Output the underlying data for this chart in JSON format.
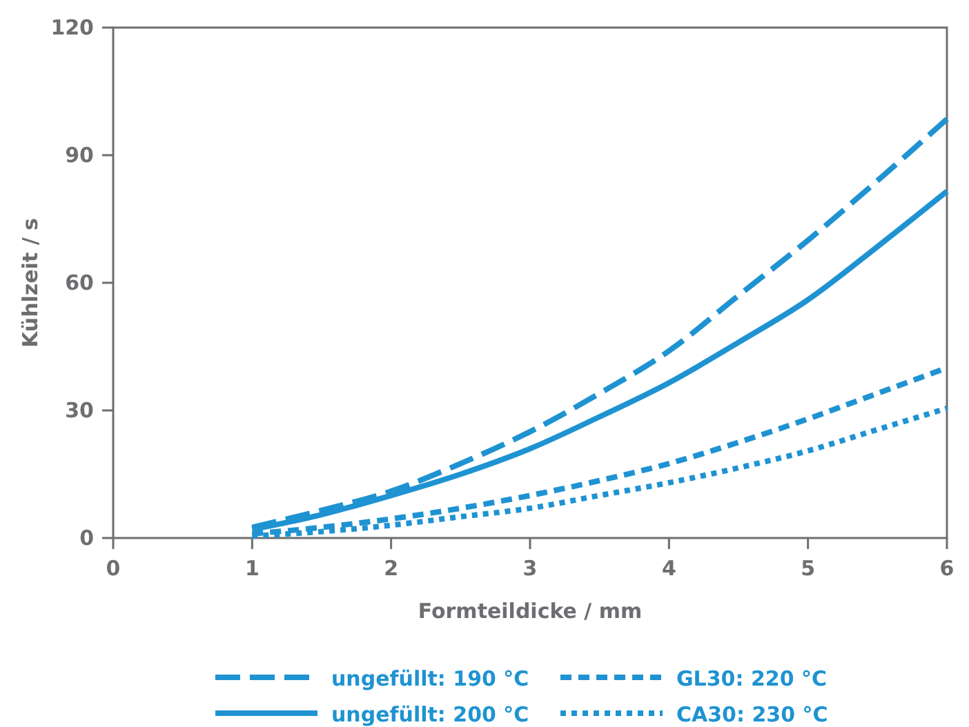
{
  "chart_data": {
    "type": "line",
    "xlabel": "Formteildicke / mm",
    "ylabel": "Kühlzeit / s",
    "x": [
      1,
      1.5,
      2,
      2.5,
      3,
      3.5,
      4,
      4.5,
      5,
      5.5,
      6
    ],
    "xlim": [
      0,
      6
    ],
    "xticks": [
      0,
      1,
      2,
      3,
      4,
      5,
      6
    ],
    "ylim": [
      0,
      120
    ],
    "yticks": [
      0,
      30,
      60,
      90,
      120
    ],
    "grid": false,
    "legend": "bottom",
    "series": [
      {
        "name": "ungefüllt: 190 °C",
        "color": "#1f93d2",
        "line_style": "dashed",
        "values": [
          2.5,
          6.5,
          11,
          17.5,
          25,
          34,
          44,
          57,
          70,
          84,
          98.5
        ]
      },
      {
        "name": "ungefüllt: 200 °C",
        "color": "#1f93d2",
        "line_style": "solid",
        "values": [
          2,
          5.5,
          10,
          15,
          21,
          28.5,
          36.5,
          46,
          56,
          68.5,
          81.5
        ]
      },
      {
        "name": "GL30: 220 °C",
        "color": "#1f93d2",
        "line_style": "dashed",
        "values": [
          1,
          2.5,
          4.5,
          7,
          10,
          13.5,
          17.5,
          22.5,
          28,
          34,
          40
        ]
      },
      {
        "name": "CA30: 230 °C",
        "color": "#1f93d2",
        "line_style": "dotted",
        "values": [
          0.5,
          1.5,
          3,
          5,
          7,
          10,
          13,
          16.5,
          20.5,
          25.5,
          30.5
        ]
      }
    ]
  }
}
